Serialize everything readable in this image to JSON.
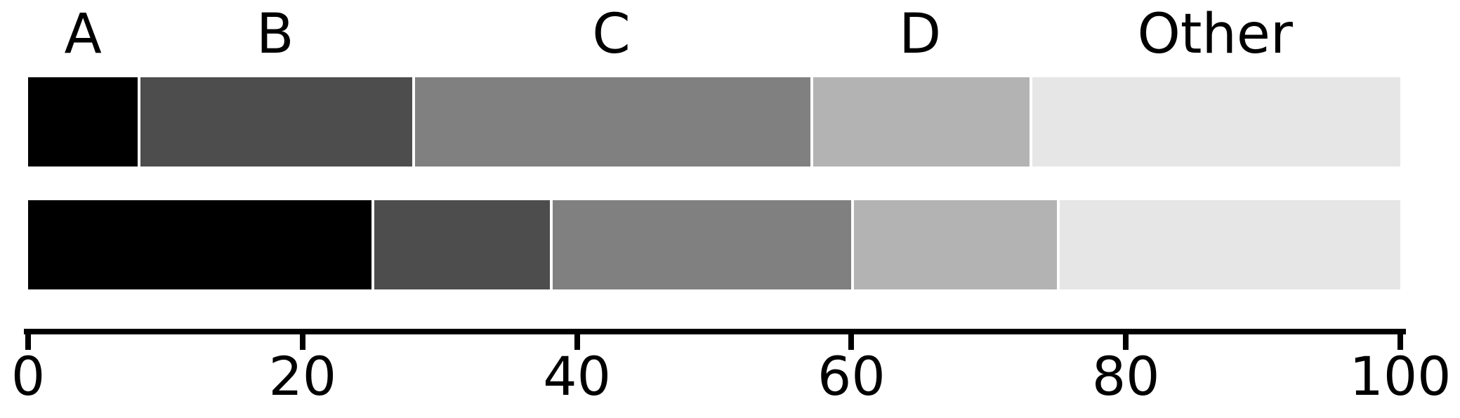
{
  "chart_data": {
    "type": "bar",
    "orientation": "horizontal",
    "stacked": true,
    "categories": [
      "A",
      "B",
      "C",
      "D",
      "Other"
    ],
    "series": [
      {
        "name": "top-bar",
        "values": [
          8,
          20,
          29,
          16,
          27
        ]
      },
      {
        "name": "bottom-bar",
        "values": [
          25,
          13,
          22,
          15,
          25
        ]
      }
    ],
    "segment_colors": [
      "#000000",
      "#4d4d4d",
      "#808080",
      "#b3b3b3",
      "#e6e6e6"
    ],
    "separator_color": "#ffffff",
    "xlim": [
      0,
      100
    ],
    "x_ticks": [
      0,
      20,
      40,
      60,
      80,
      100
    ],
    "x_tick_labels": [
      "0",
      "20",
      "40",
      "60",
      "80",
      "100"
    ],
    "axis_color": "#000000",
    "background_color": "#ffffff",
    "grid": false,
    "legend_position": "none",
    "category_labels_position": "above-top-bar-segment-centers"
  }
}
